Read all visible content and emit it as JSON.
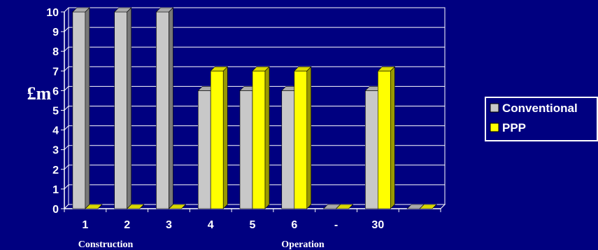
{
  "chart_data": {
    "type": "bar",
    "title": "",
    "ylabel": "£m",
    "xlabel": "",
    "categories": [
      "1",
      "2",
      "3",
      "4",
      "5",
      "6",
      "-",
      "30",
      ""
    ],
    "category_groups": [
      "Construction",
      "Operation"
    ],
    "series": [
      {
        "name": "Conventional",
        "color": "#c8c8c8",
        "values": [
          10,
          10,
          10,
          6,
          6,
          6,
          0,
          6,
          0
        ]
      },
      {
        "name": "PPP",
        "color": "#ffff00",
        "values": [
          0,
          0,
          0,
          7,
          7,
          7,
          0,
          7,
          0
        ]
      }
    ],
    "ylim": [
      0,
      10
    ],
    "yticks": [
      "0",
      "1",
      "2",
      "3",
      "4",
      "5",
      "6",
      "7",
      "8",
      "9",
      "10"
    ],
    "grid": true,
    "legend_position": "right"
  }
}
